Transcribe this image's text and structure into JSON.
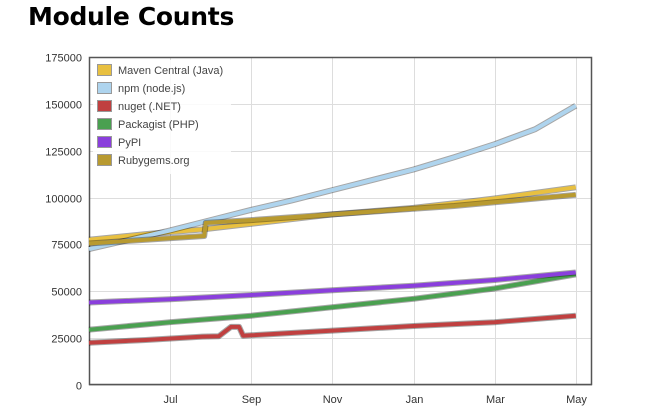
{
  "page": {
    "title": "Module Counts"
  },
  "chart_data": {
    "type": "line",
    "title": "Module Counts",
    "xlabel": "",
    "ylabel": "",
    "ylim": [
      0,
      175000
    ],
    "yticks": [
      0,
      25000,
      50000,
      75000,
      100000,
      125000,
      150000,
      175000
    ],
    "ytick_labels": [
      "0",
      "25000",
      "50000",
      "75000",
      "100000",
      "125000",
      "150000",
      "175000"
    ],
    "x_months_range": [
      0,
      12
    ],
    "xticks": [
      1.0,
      2.0,
      3.0,
      4.0,
      5.0,
      6.0
    ],
    "xtick_labels": [
      "Jul",
      "Sep",
      "Nov",
      "Jan",
      "Mar",
      "May"
    ],
    "grid": true,
    "legend_position": "top-left",
    "series": [
      {
        "name": "Maven Central (Java)",
        "color": "#e8c040",
        "x": [
          0,
          0.7,
          1.4,
          2.0,
          3.0,
          4.0,
          4.6,
          5.0,
          6.0
        ],
        "y": [
          77500,
          80500,
          83000,
          86000,
          91000,
          94500,
          97500,
          99500,
          105500
        ]
      },
      {
        "name": "npm (node.js)",
        "color": "#aed4ee",
        "x": [
          0,
          0.5,
          1.0,
          1.5,
          2.0,
          2.5,
          3.0,
          3.5,
          4.0,
          4.5,
          5.0,
          5.5,
          6.0
        ],
        "y": [
          72500,
          77500,
          82500,
          88000,
          93500,
          98500,
          104000,
          109500,
          115000,
          121500,
          128500,
          136500,
          149000
        ]
      },
      {
        "name": "nuget (.NET)",
        "color": "#c04040",
        "x": [
          0,
          0.7,
          1.4,
          1.6,
          1.75,
          1.85,
          1.9,
          2.0,
          3.0,
          4.0,
          5.0,
          6.0
        ],
        "y": [
          22500,
          24000,
          25800,
          26000,
          31000,
          31000,
          26300,
          26500,
          29000,
          31500,
          33500,
          37000
        ]
      },
      {
        "name": "Packagist (PHP)",
        "color": "#4aa050",
        "x": [
          0,
          1.0,
          2.0,
          3.0,
          4.0,
          5.0,
          6.0
        ],
        "y": [
          29500,
          33500,
          37000,
          41500,
          46000,
          51500,
          59000
        ]
      },
      {
        "name": "PyPI",
        "color": "#8a3fdc",
        "x": [
          0,
          1.0,
          2.0,
          3.0,
          4.0,
          5.0,
          6.0
        ],
        "y": [
          44000,
          45800,
          48000,
          50500,
          53000,
          56000,
          60000
        ]
      },
      {
        "name": "Rubygems.org",
        "color": "#b89a30",
        "x": [
          0,
          0.7,
          1.42,
          1.44,
          2.0,
          3.0,
          4.0,
          4.5,
          5.0,
          6.0
        ],
        "y": [
          75500,
          77500,
          79500,
          86500,
          88000,
          91000,
          94000,
          95500,
          97500,
          101500
        ]
      }
    ]
  }
}
